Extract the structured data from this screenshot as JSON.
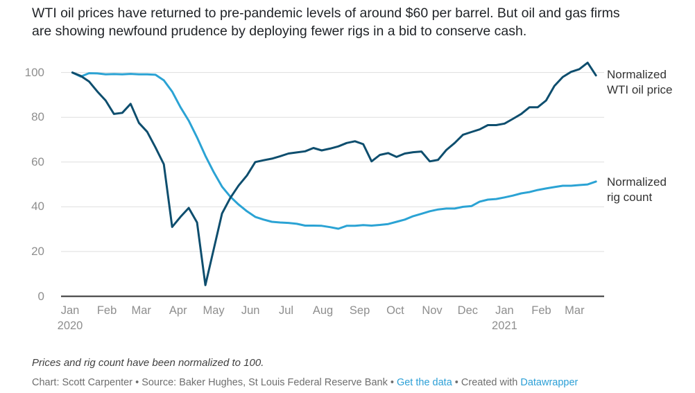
{
  "header": {
    "title_lines": [
      "WTI oil prices have returned to pre-pandemic levels of around $60 per barrel. But oil and gas firms",
      "are showing newfound prudence by deploying fewer rigs in a bid to conserve cash."
    ]
  },
  "chart_data": {
    "type": "line",
    "title": "WTI oil prices have returned to pre-pandemic levels of around $60 per barrel. But oil and gas firms are showing newfound prudence by deploying fewer rigs in a bid to conserve cash.",
    "x": [
      "2020-01-03",
      "2020-01-10",
      "2020-01-17",
      "2020-01-24",
      "2020-01-31",
      "2020-02-07",
      "2020-02-14",
      "2020-02-21",
      "2020-02-28",
      "2020-03-06",
      "2020-03-13",
      "2020-03-20",
      "2020-03-27",
      "2020-04-03",
      "2020-04-10",
      "2020-04-17",
      "2020-04-24",
      "2020-05-01",
      "2020-05-08",
      "2020-05-15",
      "2020-05-22",
      "2020-05-29",
      "2020-06-05",
      "2020-06-12",
      "2020-06-19",
      "2020-06-26",
      "2020-07-03",
      "2020-07-10",
      "2020-07-17",
      "2020-07-24",
      "2020-07-31",
      "2020-08-07",
      "2020-08-14",
      "2020-08-21",
      "2020-08-28",
      "2020-09-04",
      "2020-09-11",
      "2020-09-18",
      "2020-09-25",
      "2020-10-02",
      "2020-10-09",
      "2020-10-16",
      "2020-10-23",
      "2020-10-30",
      "2020-11-06",
      "2020-11-13",
      "2020-11-20",
      "2020-11-27",
      "2020-12-04",
      "2020-12-11",
      "2020-12-18",
      "2020-12-25",
      "2021-01-01",
      "2021-01-08",
      "2021-01-15",
      "2021-01-22",
      "2021-01-29",
      "2021-02-05",
      "2021-02-12",
      "2021-02-19",
      "2021-02-26",
      "2021-03-05",
      "2021-03-12",
      "2021-03-19"
    ],
    "series": [
      {
        "name": "Normalized WTI oil price",
        "color": "#0e4e6e",
        "values": [
          100,
          98.5,
          96,
          91.5,
          87.5,
          81.5,
          82,
          86,
          77.5,
          73.5,
          66.5,
          59,
          31,
          35.5,
          39.5,
          33,
          5,
          21,
          37,
          44,
          49.5,
          54,
          60,
          60.8,
          61.5,
          62.6,
          63.8,
          64.3,
          64.8,
          66.3,
          65.2,
          66,
          67,
          68.5,
          69.3,
          68,
          60.3,
          63.2,
          64,
          62.3,
          63.8,
          64.4,
          64.7,
          60.3,
          61,
          65.4,
          68.5,
          72.2,
          73.4,
          74.6,
          76.5,
          76.5,
          77.2,
          79.3,
          81.5,
          84.5,
          84.5,
          87.5,
          94,
          98,
          100.3,
          101.5,
          104.4,
          98.7
        ]
      },
      {
        "name": "Normalized rig count",
        "color": "#2ba3d4",
        "values": [
          100,
          98.2,
          99.7,
          99.6,
          99.2,
          99.3,
          99.2,
          99.4,
          99.2,
          99.2,
          99,
          96.5,
          91.5,
          84.5,
          78.5,
          71,
          62.8,
          55.5,
          49,
          44.5,
          41,
          38,
          35.5,
          34.3,
          33.3,
          33,
          32.8,
          32.4,
          31.6,
          31.6,
          31.5,
          30.9,
          30.2,
          31.5,
          31.5,
          31.8,
          31.6,
          31.9,
          32.3,
          33.3,
          34.3,
          35.8,
          36.9,
          38,
          38.8,
          39.2,
          39.2,
          40,
          40.3,
          42.3,
          43.2,
          43.5,
          44.2,
          45,
          46,
          46.6,
          47.5,
          48.2,
          48.8,
          49.4,
          49.4,
          49.7,
          50,
          51.3
        ]
      }
    ],
    "x_axis": {
      "ticks": [
        {
          "label": "Jan",
          "sublabel": "2020",
          "date": "2020-01-01"
        },
        {
          "label": "Feb",
          "date": "2020-02-01"
        },
        {
          "label": "Mar",
          "date": "2020-03-01"
        },
        {
          "label": "Apr",
          "date": "2020-04-01"
        },
        {
          "label": "May",
          "date": "2020-05-01"
        },
        {
          "label": "Jun",
          "date": "2020-06-01"
        },
        {
          "label": "Jul",
          "date": "2020-07-01"
        },
        {
          "label": "Aug",
          "date": "2020-08-01"
        },
        {
          "label": "Sep",
          "date": "2020-09-01"
        },
        {
          "label": "Oct",
          "date": "2020-10-01"
        },
        {
          "label": "Nov",
          "date": "2020-11-01"
        },
        {
          "label": "Dec",
          "date": "2020-12-01"
        },
        {
          "label": "Jan",
          "sublabel": "2021",
          "date": "2021-01-01"
        },
        {
          "label": "Feb",
          "date": "2021-02-01"
        },
        {
          "label": "Mar",
          "date": "2021-03-01"
        }
      ]
    },
    "y_axis": {
      "ticks": [
        0,
        20,
        40,
        60,
        80,
        100
      ],
      "range": [
        0,
        100
      ]
    },
    "grid": "horizontal",
    "legend_position": "right-of-line-end",
    "grid_color": "#dedede",
    "axis_color": "#333333"
  },
  "footer": {
    "note": "Prices and rig count have been normalized to 100.",
    "byline_parts": [
      {
        "type": "text",
        "text": "Chart: Scott Carpenter • Source: Baker Hughes, St Louis Federal Reserve Bank • "
      },
      {
        "type": "link",
        "text": "Get the data",
        "name": "get-the-data-link"
      },
      {
        "type": "text",
        "text": " • Created with "
      },
      {
        "type": "link",
        "text": "Datawrapper",
        "name": "datawrapper-link"
      }
    ],
    "link_color": "#2b9fd6"
  }
}
